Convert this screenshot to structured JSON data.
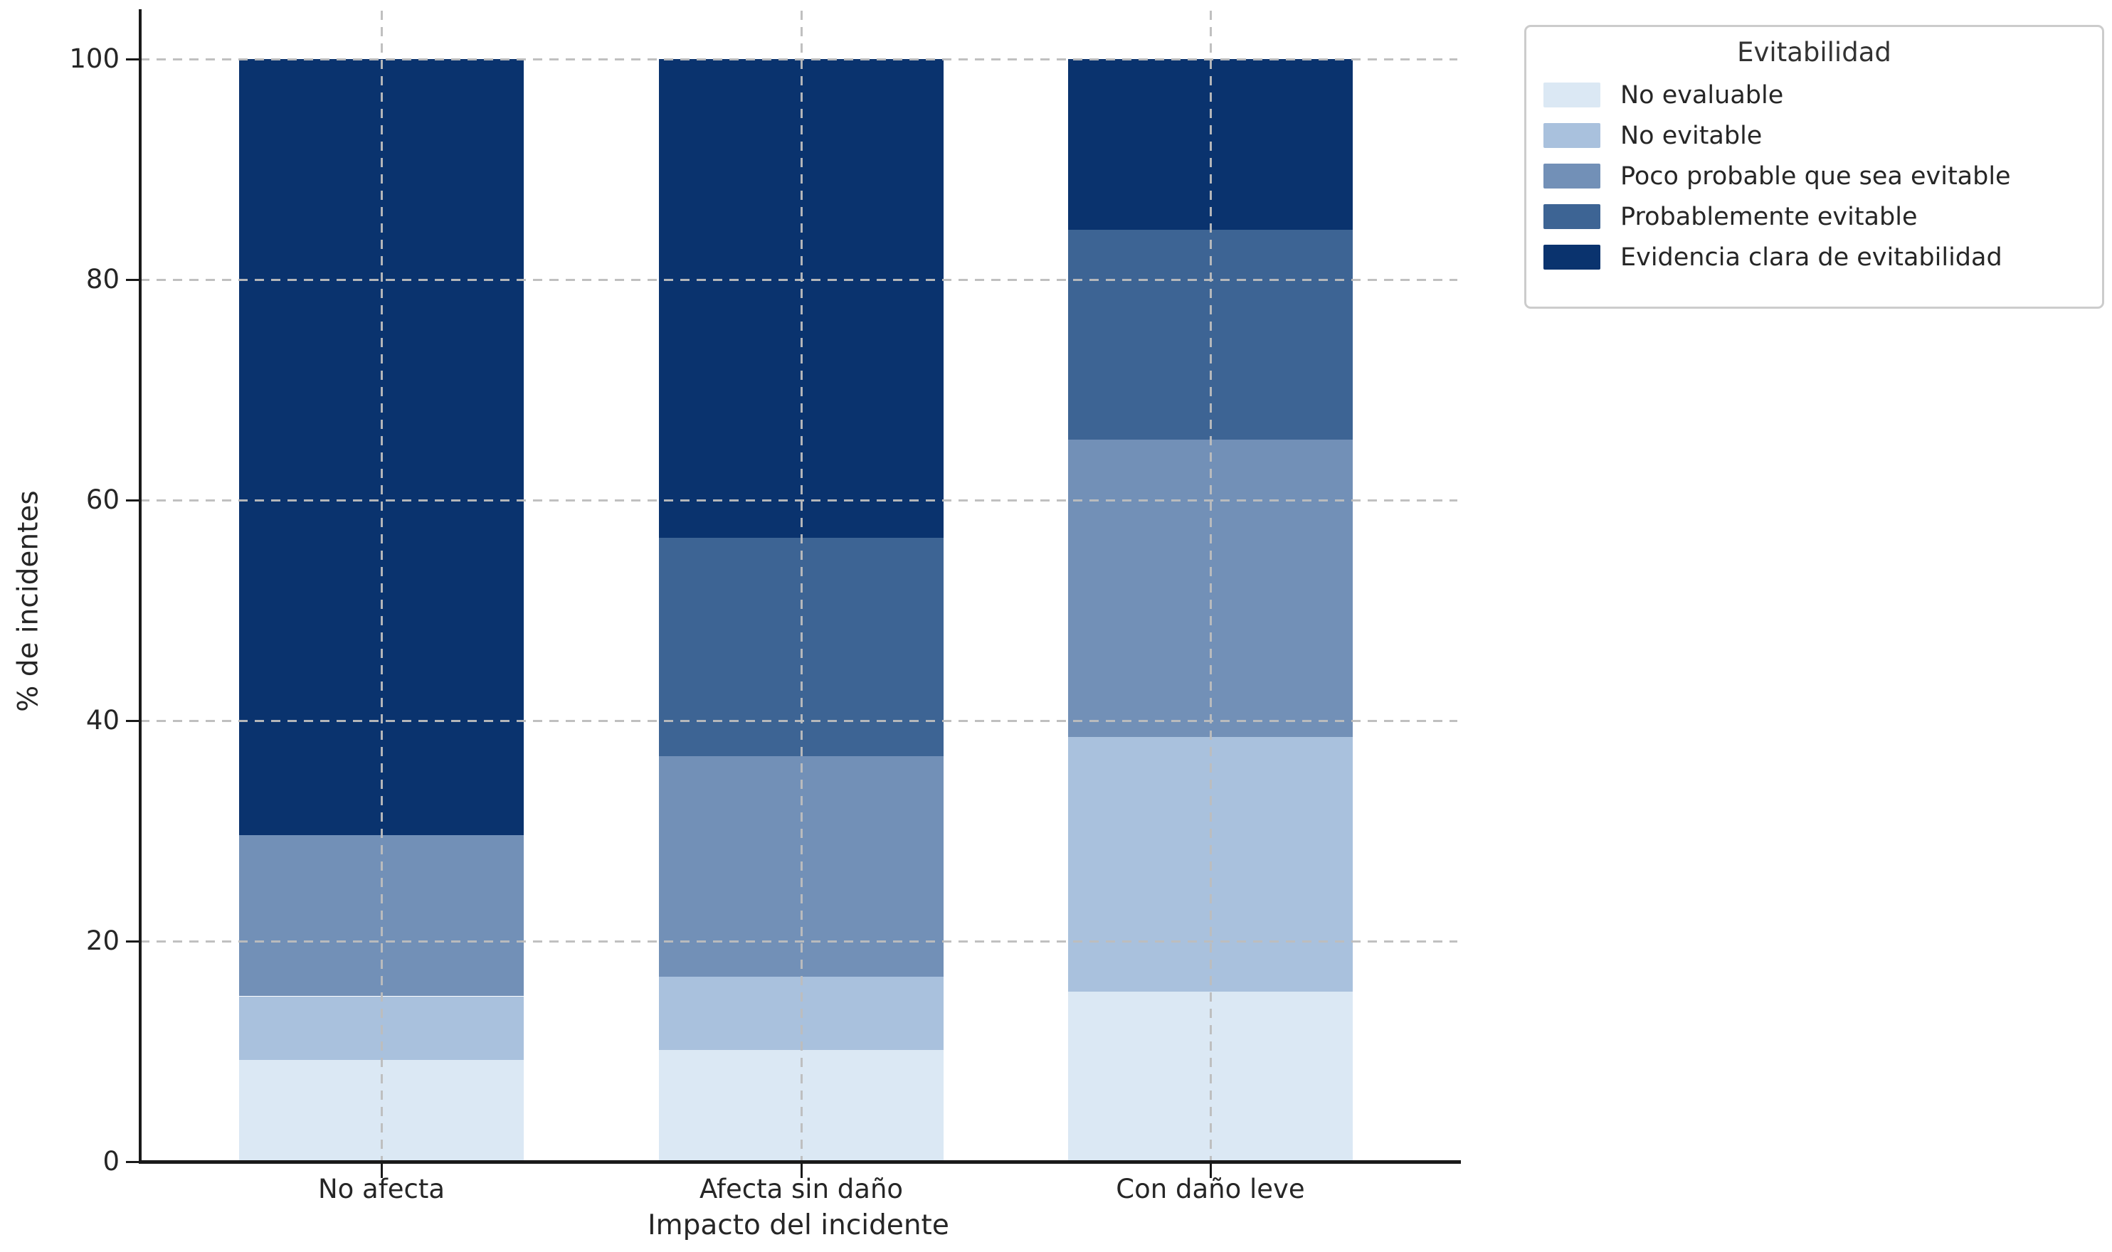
{
  "chart_data": {
    "type": "bar",
    "stacked": true,
    "orientation": "vertical",
    "title": "",
    "xlabel": "Impacto del incidente",
    "ylabel": "% de incidentes",
    "categories": [
      "No afecta",
      "Afecta sin daño",
      "Con daño leve"
    ],
    "series": [
      {
        "name": "No evaluable",
        "color": "#dbe8f4",
        "values": [
          9.2,
          10.1,
          15.4
        ]
      },
      {
        "name": "No evitable",
        "color": "#a9c1dd",
        "values": [
          5.8,
          6.7,
          23.1
        ]
      },
      {
        "name": "Poco probable que sea evitable",
        "color": "#7290b7",
        "values": [
          14.6,
          20.0,
          27.0
        ]
      },
      {
        "name": "Probablemente evitable",
        "color": "#3d6494",
        "values": [
          0.0,
          19.8,
          19.0
        ]
      },
      {
        "name": "Evidencia clara de evitabilidad",
        "color": "#0a336e",
        "values": [
          70.4,
          43.4,
          15.5
        ]
      }
    ],
    "ylim": [
      0,
      100
    ],
    "y_ticks": [
      0,
      20,
      40,
      60,
      80,
      100
    ],
    "grid": "dashed gridlines on both axes, drawn over bars",
    "legend": {
      "title": "Evitabilidad",
      "position": "upper right, outside plot area"
    }
  },
  "axes": {
    "tick_label_color": "#262626",
    "spine_color": "#1a1a1a",
    "gridline_color": "#bdbdbd",
    "background": "#ffffff"
  }
}
